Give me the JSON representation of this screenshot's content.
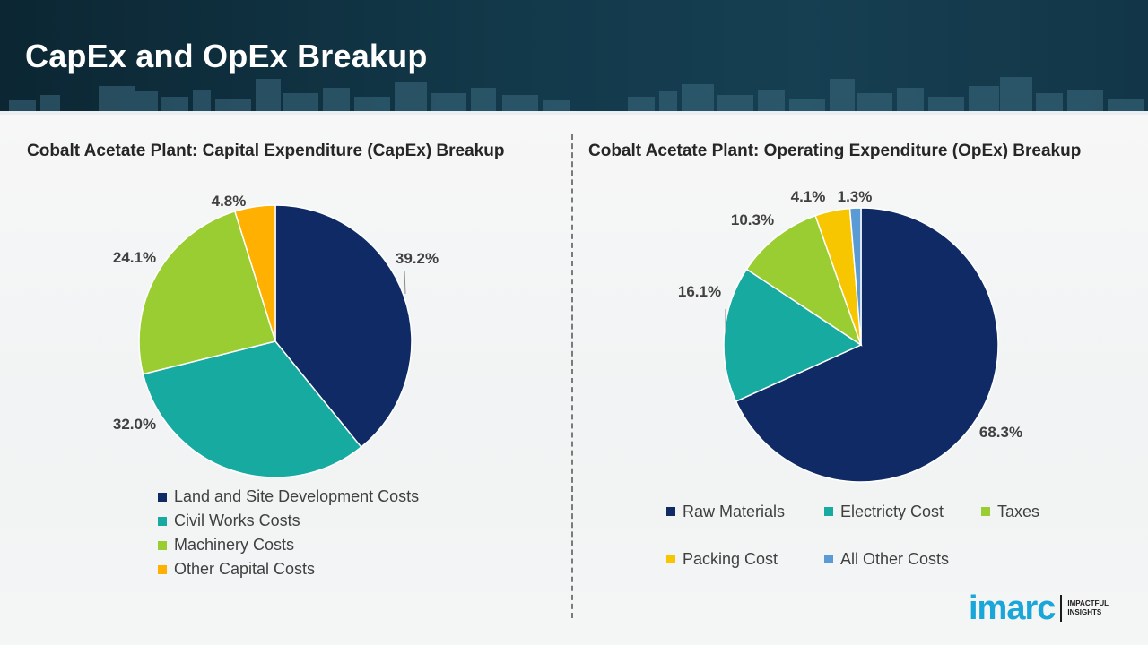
{
  "header": {
    "title": "CapEx and OpEx Breakup"
  },
  "colors": {
    "navy": "#0f2a64",
    "teal": "#17aaa0",
    "green": "#9acd32",
    "orange": "#ffb000",
    "yellow": "#f7c600",
    "blue": "#5b9bd5"
  },
  "capex": {
    "title": "Cobalt Acetate Plant: Capital Expenditure (CapEx) Breakup",
    "chart_data": {
      "type": "pie",
      "labels": [
        "Land and Site Development Costs",
        "Civil Works Costs",
        "Machinery Costs",
        "Other Capital Costs"
      ],
      "values": [
        39.2,
        32.0,
        24.1,
        4.8
      ],
      "value_labels": [
        "39.2%",
        "32.0%",
        "24.1%",
        "4.8%"
      ],
      "colors": [
        "#0f2a64",
        "#17aaa0",
        "#9acd32",
        "#ffb000"
      ],
      "legend": "bottom"
    }
  },
  "opex": {
    "title": "Cobalt Acetate Plant: Operating Expenditure (OpEx) Breakup",
    "chart_data": {
      "type": "pie",
      "labels": [
        "Raw Materials",
        "Electricty Cost",
        "Taxes",
        "Packing Cost",
        "All Other Costs"
      ],
      "values": [
        68.3,
        16.1,
        10.3,
        4.1,
        1.3
      ],
      "value_labels": [
        "68.3%",
        "16.1%",
        "10.3%",
        "4.1%",
        "1.3%"
      ],
      "colors": [
        "#0f2a64",
        "#17aaa0",
        "#9acd32",
        "#f7c600",
        "#5b9bd5"
      ],
      "legend": "bottom"
    }
  },
  "logo": {
    "word": "imarc",
    "tag_line1": "IMPACTFUL",
    "tag_line2": "INSIGHTS"
  }
}
